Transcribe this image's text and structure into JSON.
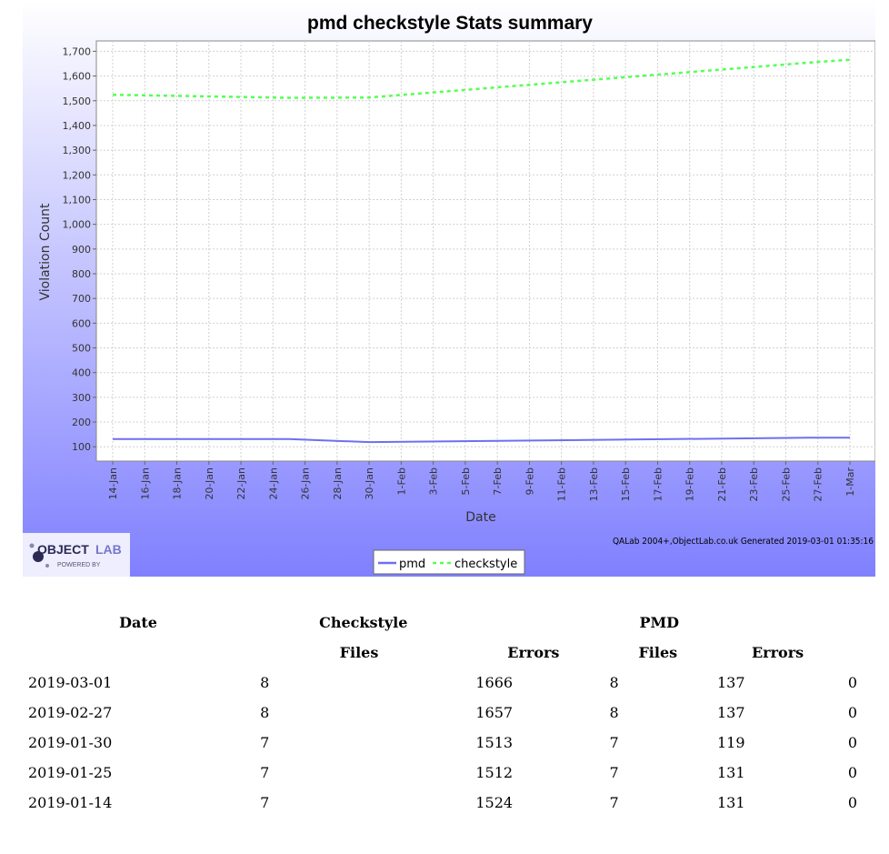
{
  "chart_data": {
    "type": "line",
    "title": "pmd checkstyle  Stats summary",
    "xlabel": "Date",
    "ylabel": "Violation Count",
    "xlim": [
      "2019-01-14",
      "2019-03-01"
    ],
    "ylim": [
      42,
      1742
    ],
    "yticks": [
      100,
      200,
      300,
      400,
      500,
      600,
      700,
      800,
      900,
      1000,
      1100,
      1200,
      1300,
      1400,
      1500,
      1600,
      1700
    ],
    "ytick_labels": [
      "100",
      "200",
      "300",
      "400",
      "500",
      "600",
      "700",
      "800",
      "900",
      "1,000",
      "1,100",
      "1,200",
      "1,300",
      "1,400",
      "1,500",
      "1,600",
      "1,700"
    ],
    "xticks": [
      "2019-01-14",
      "2019-01-16",
      "2019-01-18",
      "2019-01-20",
      "2019-01-22",
      "2019-01-24",
      "2019-01-26",
      "2019-01-28",
      "2019-01-30",
      "2019-02-01",
      "2019-02-03",
      "2019-02-05",
      "2019-02-07",
      "2019-02-09",
      "2019-02-11",
      "2019-02-13",
      "2019-02-15",
      "2019-02-17",
      "2019-02-19",
      "2019-02-21",
      "2019-02-23",
      "2019-02-25",
      "2019-02-27",
      "2019-03-01"
    ],
    "xtick_labels": [
      "14-Jan",
      "16-Jan",
      "18-Jan",
      "20-Jan",
      "22-Jan",
      "24-Jan",
      "26-Jan",
      "28-Jan",
      "30-Jan",
      "1-Feb",
      "3-Feb",
      "5-Feb",
      "7-Feb",
      "9-Feb",
      "11-Feb",
      "13-Feb",
      "15-Feb",
      "17-Feb",
      "19-Feb",
      "21-Feb",
      "23-Feb",
      "25-Feb",
      "27-Feb",
      "1-Mar"
    ],
    "grid": true,
    "legend": "bottom-center",
    "series": [
      {
        "name": "pmd",
        "color": "#6f6fef",
        "style": "solid",
        "x": [
          "2019-01-14",
          "2019-01-25",
          "2019-01-30",
          "2019-02-27",
          "2019-03-01"
        ],
        "y": [
          131,
          131,
          119,
          137,
          137
        ]
      },
      {
        "name": "checkstyle",
        "color": "#55ff55",
        "style": "dashed",
        "x": [
          "2019-01-14",
          "2019-01-25",
          "2019-01-30",
          "2019-02-27",
          "2019-03-01"
        ],
        "y": [
          1524,
          1512,
          1513,
          1657,
          1666
        ]
      }
    ],
    "credit": "QALab 2004+,ObjectLab.co.uk  Generated 2019-03-01 01:35:16"
  },
  "logo": {
    "brand_dark": "OBJECT",
    "brand_light": "LAB",
    "tagline": "POWERED BY"
  },
  "colors": {
    "panel_top": "#ffffff",
    "panel_bottom": "#8080ff",
    "plot_bg": "#ffffff",
    "grid": "#d0d0d0"
  },
  "table": {
    "headers": {
      "date": "Date",
      "checkstyle": "Checkstyle",
      "pmd": "PMD",
      "files": "Files",
      "errors": "Errors"
    },
    "rows": [
      {
        "date": "2019-03-01",
        "cs_files": "8",
        "cs_errors": "1666",
        "pmd_files": "8",
        "pmd_errors": "137",
        "extra": "0"
      },
      {
        "date": "2019-02-27",
        "cs_files": "8",
        "cs_errors": "1657",
        "pmd_files": "8",
        "pmd_errors": "137",
        "extra": "0"
      },
      {
        "date": "2019-01-30",
        "cs_files": "7",
        "cs_errors": "1513",
        "pmd_files": "7",
        "pmd_errors": "119",
        "extra": "0"
      },
      {
        "date": "2019-01-25",
        "cs_files": "7",
        "cs_errors": "1512",
        "pmd_files": "7",
        "pmd_errors": "131",
        "extra": "0"
      },
      {
        "date": "2019-01-14",
        "cs_files": "7",
        "cs_errors": "1524",
        "pmd_files": "7",
        "pmd_errors": "131",
        "extra": "0"
      }
    ]
  }
}
